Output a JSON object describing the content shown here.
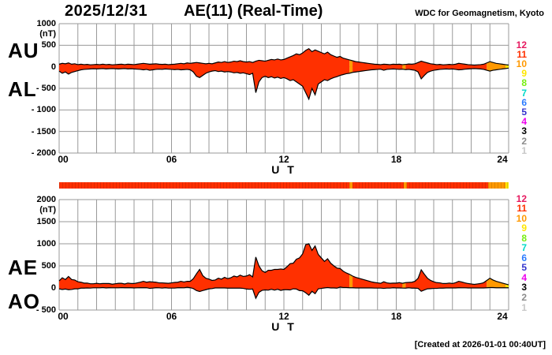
{
  "header": {
    "date": "2025/12/31",
    "title": "AE(11) (Real-Time)",
    "source": "WDC for Geomagnetism, Kyoto"
  },
  "footer": {
    "created": "[Created at 2026-01-01 00:40UT]"
  },
  "station_legend": {
    "counts": [
      "12",
      "11",
      "10",
      "9",
      "8",
      "7",
      "6",
      "5",
      "4",
      "3",
      "2",
      "1"
    ],
    "colors": {
      "12": "#E6195F",
      "11": "#FF3000",
      "10": "#FF9900",
      "9": "#FFE600",
      "8": "#77EE11",
      "7": "#00D9C8",
      "6": "#2B7BFF",
      "5": "#3333CC",
      "4": "#EE00EE",
      "3": "#000000",
      "2": "#8C8C8C",
      "1": "#C8C8C8"
    }
  },
  "availability_bar": {
    "segments": [
      {
        "from": 0,
        "to": 15.5,
        "count": "11"
      },
      {
        "from": 15.5,
        "to": 15.67,
        "count": "10"
      },
      {
        "from": 15.67,
        "to": 18.4,
        "count": "11"
      },
      {
        "from": 18.4,
        "to": 18.57,
        "count": "10"
      },
      {
        "from": 18.57,
        "to": 22.9,
        "count": "11"
      },
      {
        "from": 22.9,
        "to": 23.83,
        "count": "10"
      },
      {
        "from": 23.83,
        "to": 24,
        "count": "9"
      }
    ]
  },
  "chart_data": [
    {
      "type": "area",
      "title": "AU / AL auroral electrojet indices",
      "xlabel": "U T",
      "ylabel": "(nT)",
      "x_range": [
        0,
        24
      ],
      "x_ticks": [
        "00",
        "06",
        "12",
        "18",
        "24"
      ],
      "x_tick_hours": [
        0,
        6,
        12,
        18,
        24
      ],
      "ylim": [
        -2000,
        1000
      ],
      "y_ticks": [
        "1000",
        "500",
        "0",
        "- 500",
        "- 1000",
        "- 1500",
        "- 2000"
      ],
      "y_tick_values": [
        1000,
        500,
        0,
        -500,
        -1000,
        -1500,
        -2000
      ],
      "grid": true,
      "x_step_hours": 0.1667,
      "series": [
        {
          "name": "AU",
          "values": [
            60,
            80,
            70,
            90,
            60,
            70,
            50,
            60,
            50,
            55,
            45,
            50,
            55,
            50,
            60,
            50,
            55,
            45,
            50,
            55,
            60,
            50,
            60,
            55,
            50,
            60,
            70,
            80,
            70,
            60,
            65,
            70,
            60,
            55,
            60,
            50,
            55,
            60,
            70,
            80,
            70,
            90,
            80,
            90,
            100,
            90,
            80,
            70,
            80,
            70,
            90,
            110,
            100,
            120,
            100,
            110,
            130,
            120,
            140,
            120,
            110,
            120,
            100,
            130,
            150,
            140,
            130,
            150,
            170,
            160,
            180,
            160,
            170,
            200,
            230,
            260,
            300,
            280,
            320,
            380,
            420,
            350,
            390,
            360,
            330,
            300,
            340,
            280,
            250,
            220,
            240,
            200,
            180,
            160,
            140,
            120,
            110,
            100,
            90,
            80,
            70,
            60,
            55,
            50,
            60,
            55,
            50,
            60,
            55,
            60,
            50,
            55,
            65,
            60,
            70,
            100,
            130,
            110,
            90,
            70,
            60,
            50,
            55,
            45,
            50,
            55,
            50,
            60,
            80,
            70,
            60,
            50,
            45,
            40,
            45,
            50,
            60,
            90,
            120,
            100,
            80,
            70,
            60,
            50,
            40
          ]
        },
        {
          "name": "AL",
          "values": [
            -100,
            -150,
            -120,
            -170,
            -130,
            -110,
            -90,
            -70,
            -60,
            -55,
            -50,
            -45,
            -50,
            -45,
            -40,
            -50,
            -45,
            -40,
            -45,
            -50,
            -45,
            -40,
            -50,
            -45,
            -50,
            -55,
            -60,
            -70,
            -60,
            -80,
            -70,
            -60,
            -55,
            -60,
            -50,
            -55,
            -60,
            -65,
            -60,
            -70,
            -65,
            -60,
            -70,
            -120,
            -220,
            -250,
            -200,
            -150,
            -120,
            -100,
            -90,
            -110,
            -100,
            -120,
            -110,
            -120,
            -140,
            -130,
            -150,
            -140,
            -160,
            -180,
            -150,
            -600,
            -350,
            -250,
            -220,
            -250,
            -230,
            -260,
            -240,
            -270,
            -250,
            -280,
            -320,
            -300,
            -350,
            -400,
            -450,
            -600,
            -750,
            -500,
            -650,
            -400,
            -350,
            -300,
            -320,
            -280,
            -250,
            -230,
            -200,
            -180,
            -160,
            -150,
            -130,
            -120,
            -110,
            -100,
            -90,
            -80,
            -70,
            -65,
            -60,
            -55,
            -80,
            -60,
            -55,
            -50,
            -55,
            -60,
            -55,
            -65,
            -60,
            -70,
            -80,
            -120,
            -280,
            -200,
            -130,
            -100,
            -80,
            -70,
            -60,
            -55,
            -50,
            -55,
            -50,
            -60,
            -70,
            -65,
            -55,
            -50,
            -45,
            -40,
            -45,
            -50,
            -60,
            -80,
            -100,
            -80,
            -70,
            -60,
            -50,
            -40,
            -30
          ]
        }
      ]
    },
    {
      "type": "area",
      "title": "AE / AO auroral electrojet indices",
      "xlabel": "U T",
      "ylabel": "(nT)",
      "x_range": [
        0,
        24
      ],
      "x_ticks": [
        "00",
        "06",
        "12",
        "18",
        "24"
      ],
      "x_tick_hours": [
        0,
        6,
        12,
        18,
        24
      ],
      "ylim": [
        -500,
        2000
      ],
      "y_ticks": [
        "2000",
        "1500",
        "1000",
        "500",
        "0",
        "- 500"
      ],
      "y_tick_values": [
        2000,
        1500,
        1000,
        500,
        0,
        -500
      ],
      "grid": true,
      "x_step_hours": 0.1667,
      "series": [
        {
          "name": "AE",
          "values": [
            160,
            230,
            190,
            260,
            190,
            180,
            140,
            130,
            110,
            110,
            95,
            95,
            105,
            95,
            100,
            100,
            100,
            85,
            95,
            105,
            105,
            90,
            110,
            100,
            100,
            115,
            130,
            150,
            130,
            140,
            135,
            130,
            115,
            115,
            110,
            105,
            115,
            125,
            130,
            150,
            135,
            150,
            150,
            210,
            320,
            420,
            280,
            220,
            200,
            170,
            180,
            220,
            200,
            240,
            210,
            230,
            270,
            250,
            290,
            260,
            270,
            300,
            250,
            700,
            500,
            390,
            350,
            400,
            400,
            420,
            420,
            430,
            420,
            480,
            550,
            560,
            650,
            680,
            770,
            980,
            1000,
            850,
            950,
            760,
            680,
            600,
            660,
            560,
            500,
            450,
            440,
            380,
            340,
            310,
            270,
            240,
            220,
            200,
            180,
            160,
            140,
            125,
            115,
            105,
            140,
            115,
            105,
            110,
            110,
            120,
            105,
            120,
            125,
            130,
            150,
            220,
            410,
            310,
            220,
            170,
            140,
            120,
            115,
            100,
            100,
            110,
            100,
            120,
            150,
            135,
            115,
            100,
            90,
            80,
            90,
            100,
            120,
            170,
            220,
            180,
            150,
            130,
            110,
            90,
            70
          ]
        },
        {
          "name": "AO",
          "values": [
            -20,
            -35,
            -25,
            -40,
            -35,
            -20,
            -20,
            -5,
            -5,
            0,
            -3,
            3,
            3,
            3,
            10,
            0,
            5,
            3,
            3,
            3,
            8,
            5,
            5,
            5,
            0,
            3,
            5,
            5,
            5,
            -10,
            -3,
            5,
            3,
            -3,
            5,
            -3,
            -3,
            -3,
            5,
            5,
            3,
            15,
            5,
            -15,
            -60,
            -80,
            -60,
            -40,
            -20,
            -15,
            0,
            0,
            0,
            0,
            -5,
            -5,
            -5,
            -5,
            -5,
            -10,
            -25,
            -30,
            -25,
            -235,
            -100,
            -55,
            -45,
            -50,
            -30,
            -50,
            -30,
            -55,
            -40,
            -40,
            -45,
            -20,
            -25,
            -60,
            -65,
            -110,
            -165,
            -75,
            -130,
            -20,
            -10,
            0,
            10,
            0,
            0,
            -5,
            20,
            10,
            10,
            5,
            5,
            0,
            0,
            0,
            0,
            0,
            0,
            -3,
            -3,
            -3,
            -10,
            -3,
            -3,
            5,
            0,
            0,
            -3,
            -5,
            3,
            -5,
            -5,
            -10,
            -75,
            -45,
            -20,
            -15,
            -10,
            -10,
            -3,
            -5,
            0,
            0,
            0,
            0,
            5,
            3,
            3,
            0,
            0,
            0,
            0,
            0,
            0,
            5,
            10,
            10,
            5,
            5,
            5,
            5,
            5
          ]
        }
      ]
    }
  ]
}
